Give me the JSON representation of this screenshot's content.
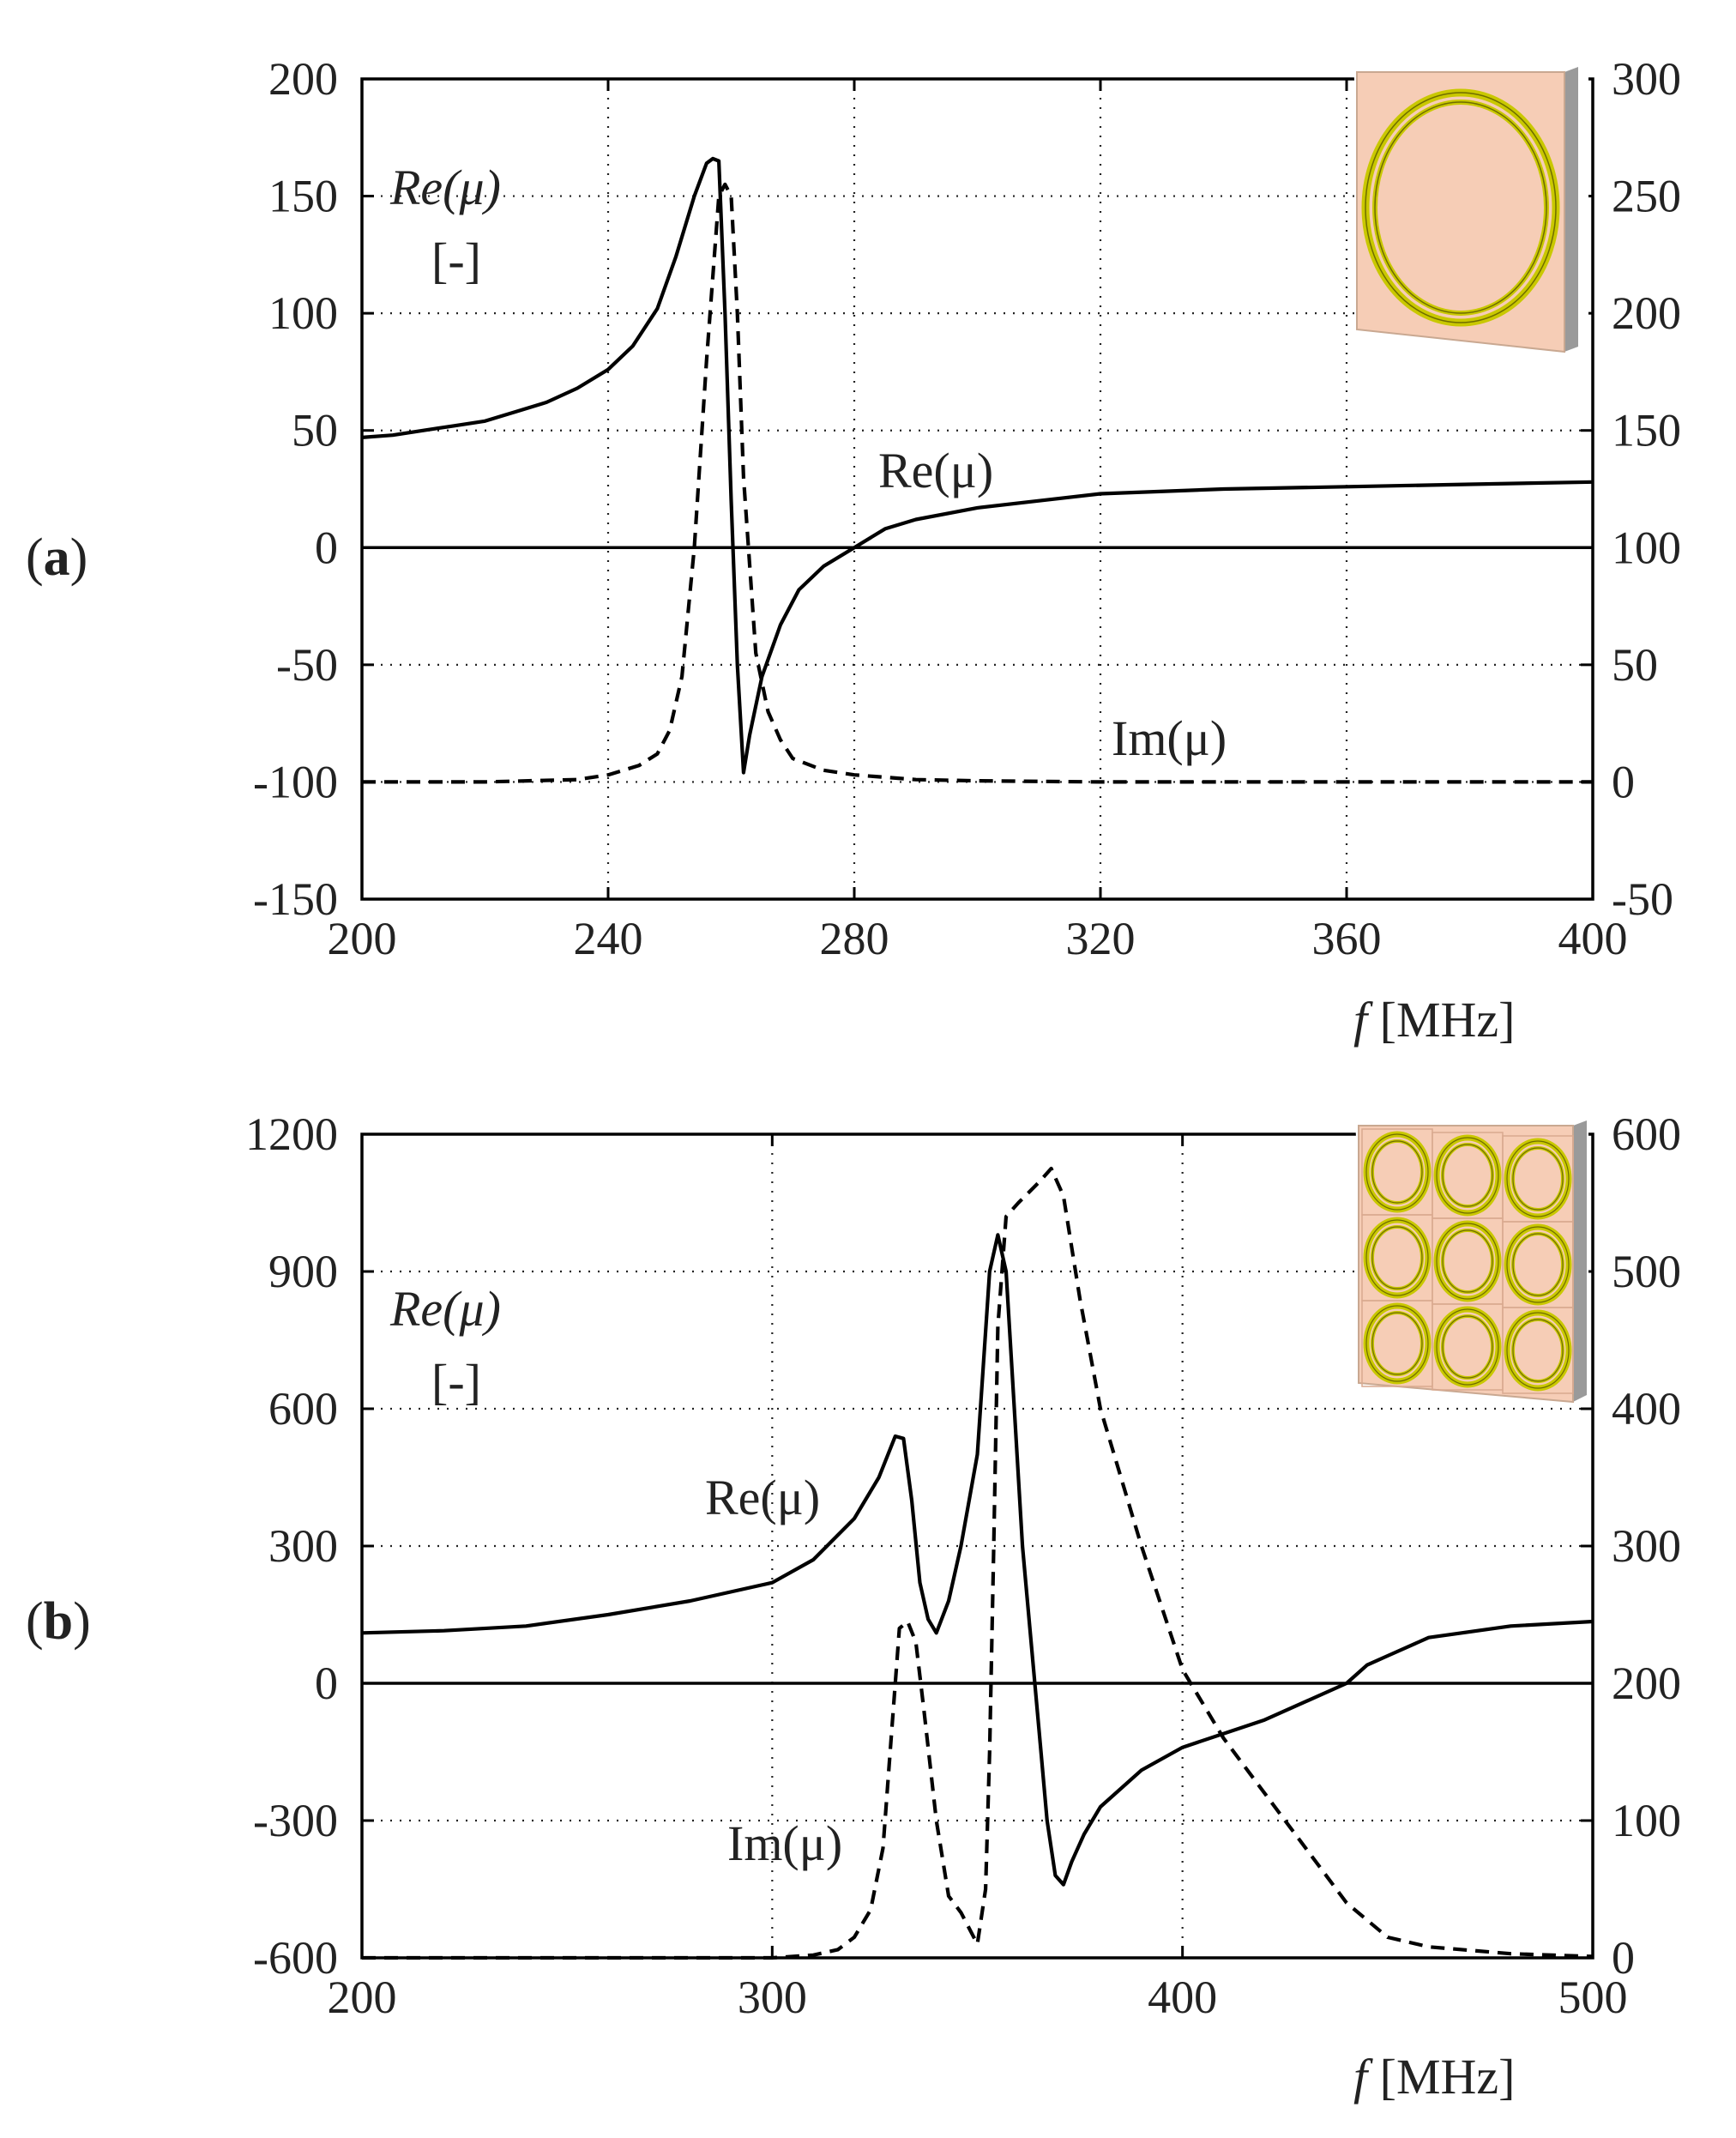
{
  "figure": {
    "panel_labels": {
      "a_open": "(",
      "a_letter": "a",
      "a_close": ")",
      "b_open": "(",
      "b_letter": "b",
      "b_close": ")"
    }
  },
  "colors": {
    "line": "#000000",
    "grid": "#222222",
    "inset_substrate": "#f6cdb6",
    "inset_edge": "#9a9a9a",
    "inset_ring": "#c9c800",
    "inset_ring_dark": "#6f6c00"
  },
  "chart_data": [
    {
      "id": "a",
      "type": "line",
      "title": "",
      "xlabel_italic": "f",
      "xlabel_unit": " [MHz]",
      "ylabel_left": "Re(μ)",
      "ylabel_left_unit": "[-]",
      "xlim": [
        200,
        400
      ],
      "ylim_left": [
        -150,
        200
      ],
      "ylim_right": [
        -50,
        300
      ],
      "x_ticks": [
        "200",
        "240",
        "280",
        "320",
        "360",
        "400"
      ],
      "x_tick_values": [
        200,
        240,
        280,
        320,
        360,
        400
      ],
      "y_left_ticks": [
        "-150",
        "-100",
        "-50",
        "0",
        "50",
        "100",
        "150",
        "200"
      ],
      "y_left_tick_values": [
        -150,
        -100,
        -50,
        0,
        50,
        100,
        150,
        200
      ],
      "y_right_ticks": [
        "-50",
        "0",
        "50",
        "100",
        "150",
        "200",
        "250",
        "300"
      ],
      "y_right_tick_values": [
        -50,
        0,
        50,
        100,
        150,
        200,
        250,
        300
      ],
      "grid": true,
      "inset": "single-ring",
      "annotations": [
        {
          "text": "Re(μ)",
          "series": "Re(μ)",
          "x": 288,
          "y": 22
        },
        {
          "text": "Im(μ)",
          "series": "Im(μ)",
          "x": 329,
          "y": -84
        }
      ],
      "series": [
        {
          "name": "Re(μ)",
          "axis": "left",
          "style": "solid",
          "x": [
            200,
            205,
            210,
            215,
            220,
            225,
            230,
            235,
            240,
            244,
            248,
            251,
            254,
            256,
            257,
            258,
            259,
            260,
            261,
            262,
            263,
            265,
            268,
            271,
            275,
            280,
            285,
            290,
            300,
            310,
            320,
            340,
            360,
            380,
            400
          ],
          "y": [
            47,
            48,
            50,
            52,
            54,
            58,
            62,
            68,
            76,
            86,
            102,
            124,
            150,
            164,
            166,
            165,
            100,
            20,
            -50,
            -96,
            -80,
            -55,
            -33,
            -18,
            -8,
            0,
            8,
            12,
            17,
            20,
            23,
            25,
            26,
            27,
            28
          ]
        },
        {
          "name": "Im(μ)",
          "axis": "right",
          "style": "dashed",
          "x": [
            200,
            220,
            235,
            240,
            245,
            248,
            250,
            252,
            254,
            256,
            258,
            259,
            260,
            261,
            262,
            264,
            266,
            268,
            270,
            275,
            280,
            290,
            300,
            320,
            340,
            360,
            380,
            400
          ],
          "y": [
            0,
            0,
            1,
            3,
            7,
            12,
            22,
            45,
            100,
            180,
            250,
            255,
            250,
            200,
            130,
            55,
            30,
            18,
            10,
            5,
            3,
            1,
            0.5,
            0,
            0,
            0,
            0,
            0
          ]
        }
      ]
    },
    {
      "id": "b",
      "type": "line",
      "title": "",
      "xlabel_italic": "f",
      "xlabel_unit": " [MHz]",
      "ylabel_left": "Re(μ)",
      "ylabel_left_unit": "[-]",
      "xlim": [
        200,
        500
      ],
      "ylim_left": [
        -600,
        1200
      ],
      "ylim_right": [
        0,
        600
      ],
      "x_ticks": [
        "200",
        "300",
        "400",
        "500"
      ],
      "x_tick_values": [
        200,
        300,
        400,
        500
      ],
      "y_left_ticks": [
        "-600",
        "-300",
        "0",
        "300",
        "600",
        "900",
        "1200"
      ],
      "y_left_tick_values": [
        -600,
        -300,
        0,
        300,
        600,
        900,
        1200
      ],
      "y_right_ticks": [
        "0",
        "100",
        "200",
        "300",
        "400",
        "500",
        "600"
      ],
      "y_right_tick_values": [
        0,
        100,
        200,
        300,
        400,
        500,
        600
      ],
      "grid": true,
      "inset": "3x3-ring-array",
      "annotations": [
        {
          "text": "Re(μ)",
          "series": "Re(μ)",
          "x": 305,
          "y": 400
        },
        {
          "text": "Im(μ)",
          "series": "Im(μ)",
          "x": 312,
          "y": -380
        }
      ],
      "series": [
        {
          "name": "Re(μ)",
          "axis": "left",
          "style": "solid",
          "x": [
            200,
            220,
            240,
            260,
            280,
            300,
            310,
            320,
            326,
            330,
            332,
            334,
            336,
            338,
            340,
            343,
            346,
            350,
            353,
            355,
            357,
            359,
            361,
            363,
            365,
            367,
            369,
            371,
            373,
            376,
            380,
            390,
            400,
            420,
            440,
            445,
            450,
            460,
            480,
            500
          ],
          "y": [
            110,
            115,
            125,
            150,
            180,
            220,
            270,
            360,
            450,
            540,
            535,
            400,
            220,
            140,
            110,
            180,
            300,
            500,
            900,
            980,
            900,
            600,
            300,
            100,
            -100,
            -300,
            -420,
            -440,
            -390,
            -330,
            -270,
            -190,
            -140,
            -80,
            0,
            40,
            60,
            100,
            125,
            135
          ]
        },
        {
          "name": "Im(μ)",
          "axis": "right",
          "style": "dashed",
          "x": [
            200,
            300,
            310,
            316,
            320,
            324,
            327,
            329,
            331,
            333,
            335,
            337,
            340,
            343,
            346,
            350,
            352,
            353,
            354,
            355,
            357,
            360,
            365,
            368,
            371,
            375,
            380,
            390,
            400,
            410,
            420,
            430,
            440,
            450,
            460,
            480,
            500
          ],
          "y": [
            0,
            0,
            2,
            6,
            15,
            35,
            80,
            160,
            240,
            245,
            230,
            180,
            100,
            45,
            33,
            10,
            50,
            150,
            300,
            460,
            540,
            550,
            565,
            575,
            555,
            480,
            400,
            300,
            210,
            160,
            120,
            80,
            40,
            15,
            8,
            3,
            1
          ]
        }
      ]
    }
  ]
}
